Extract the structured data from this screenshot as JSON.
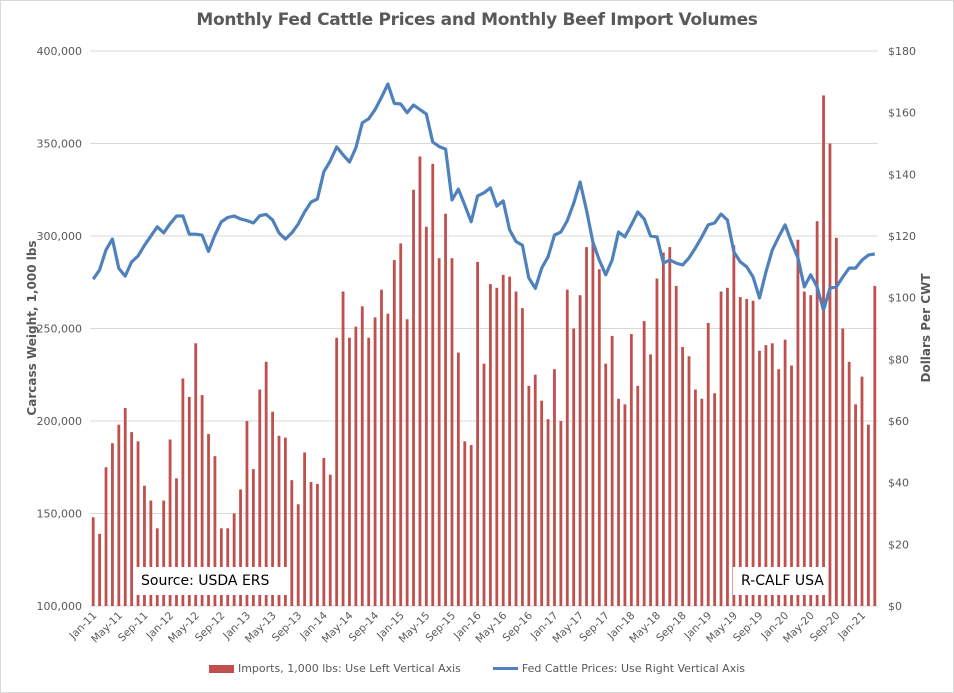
{
  "chart_data": {
    "type": "bar+line",
    "title": "Monthly Fed Cattle Prices and Monthly Beef Import Volumes",
    "ylabel_left": "Carcass Weight, 1,000 lbs",
    "ylabel_right": "Dollars Per CWT",
    "ylim_left": [
      100000,
      400000
    ],
    "ylim_right": [
      0,
      180
    ],
    "yticks_left": [
      "100,000",
      "150,000",
      "200,000",
      "250,000",
      "300,000",
      "350,000",
      "400,000"
    ],
    "yticks_right": [
      "$0",
      "$20",
      "$40",
      "$60",
      "$80",
      "$100",
      "$120",
      "$140",
      "$160",
      "$180"
    ],
    "xtick_labels": [
      "Jan-11",
      "May-11",
      "Sep-11",
      "Jan-12",
      "May-12",
      "Sep-12",
      "Jan-13",
      "May-13",
      "Sep-13",
      "Jan-14",
      "May-14",
      "Sep-14",
      "Jan-15",
      "May-15",
      "Sep-15",
      "Jan-16",
      "May-16",
      "Sep-16",
      "Jan-17",
      "May-17",
      "Sep-17",
      "Jan-18",
      "May-18",
      "Sep-18",
      "Jan-19",
      "May-19",
      "Sep-19",
      "Jan-20",
      "May-20",
      "Sep-20",
      "Jan-21"
    ],
    "start_month": "Jan-11",
    "grid": true,
    "legend_position": "bottom",
    "series": [
      {
        "name": "Imports, 1,000 lbs: Use Left Vertical Axis",
        "type": "bar",
        "axis": "left",
        "color": "#c0504d",
        "values": [
          148000,
          139000,
          175000,
          188000,
          198000,
          207000,
          194000,
          189000,
          165000,
          157000,
          142000,
          157000,
          190000,
          169000,
          223000,
          213000,
          242000,
          214000,
          193000,
          181000,
          142000,
          142000,
          150000,
          163000,
          200000,
          174000,
          217000,
          232000,
          205000,
          192000,
          191000,
          168000,
          155000,
          183000,
          167000,
          166000,
          180000,
          171000,
          245000,
          270000,
          245000,
          251000,
          262000,
          245000,
          256000,
          271000,
          258000,
          287000,
          296000,
          255000,
          325000,
          343000,
          305000,
          339000,
          288000,
          312000,
          288000,
          237000,
          189000,
          187000,
          286000,
          231000,
          274000,
          272000,
          279000,
          278000,
          270000,
          261000,
          219000,
          225000,
          211000,
          201000,
          228000,
          200000,
          271000,
          250000,
          268000,
          294000,
          296000,
          282000,
          231000,
          246000,
          212000,
          209000,
          247000,
          219000,
          254000,
          236000,
          277000,
          291000,
          294000,
          273000,
          240000,
          235000,
          217000,
          212000,
          253000,
          215000,
          270000,
          272000,
          295000,
          267000,
          266000,
          265000,
          238000,
          241000,
          242000,
          228000,
          244000,
          230000,
          298000,
          270000,
          268000,
          308000,
          376000,
          350000,
          299000,
          250000,
          232000,
          209000,
          224000,
          198000,
          273000
        ]
      },
      {
        "name": "Fed Cattle Prices: Use Right Vertical Axis",
        "type": "line",
        "axis": "right",
        "color": "#4f81bd",
        "values": [
          106,
          109,
          115.5,
          119,
          109.5,
          107,
          111.6,
          113.5,
          117,
          120,
          123,
          121,
          124,
          126.5,
          126.5,
          120.6,
          120.6,
          120.3,
          115,
          120.3,
          124.6,
          126,
          126.5,
          125.5,
          125,
          124.2,
          126.6,
          127,
          125.2,
          121,
          119,
          121,
          123.9,
          127.8,
          131,
          132,
          140.8,
          144.3,
          148.9,
          146.3,
          144,
          148.6,
          156.7,
          158,
          161,
          165,
          169.3,
          163,
          162.8,
          160,
          162.5,
          161,
          159.6,
          150.5,
          149,
          148.2,
          131.7,
          135.2,
          130,
          124.6,
          133,
          134,
          135.6,
          129.7,
          131.4,
          122,
          118.2,
          117,
          106.4,
          103,
          109.6,
          113.3,
          120.3,
          121.3,
          125,
          130.6,
          137.5,
          128.4,
          118,
          112.2,
          107.4,
          112.2,
          121.3,
          119.7,
          123.6,
          127.8,
          125.5,
          120,
          119.7,
          111.2,
          112.2,
          111.2,
          110.6,
          112.9,
          116.1,
          119.7,
          123.6,
          124.2,
          127.1,
          125.2,
          114.8,
          111.6,
          110,
          106.7,
          99.9,
          108.3,
          115.5,
          119.7,
          123.6,
          118,
          112.9,
          103.5,
          107.4,
          103.5,
          96,
          103.1,
          103.5,
          106.7,
          109.6,
          109.6,
          112.2,
          113.8,
          114.2
        ]
      }
    ],
    "annotations": [
      "Source:  USDA ERS",
      "R-CALF USA"
    ]
  },
  "legend": {
    "bar_label": "Imports, 1,000 lbs: Use Left Vertical Axis",
    "line_label": "Fed Cattle Prices: Use Right Vertical Axis"
  },
  "annotations": {
    "source": "Source:  USDA ERS",
    "org": "R-CALF USA"
  }
}
